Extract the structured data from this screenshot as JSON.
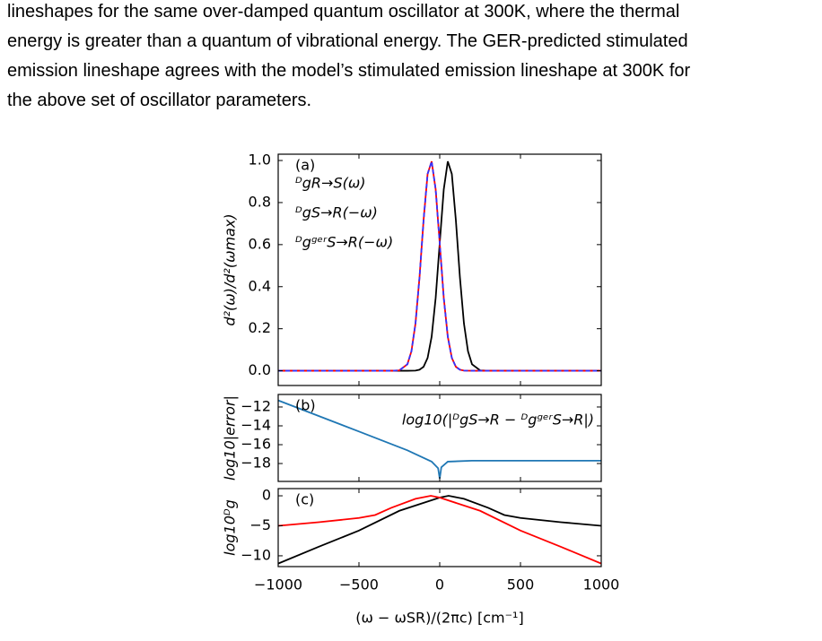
{
  "paragraph": {
    "lines": [
      "lineshapes for the same over-damped quantum oscillator at 300K, where the thermal",
      "energy is greater than a quantum of vibrational energy. The GER-predicted stimulated",
      "emission lineshape agrees with the model’s stimulated emission lineshape at 300K for",
      "the above set of oscillator parameters."
    ]
  },
  "chart_data": [
    {
      "type": "line",
      "panel_label": "(a)",
      "ylabel": "d²(ω)/d²(ωmax)",
      "legend": "upper left",
      "xlim": [
        -1000,
        1000
      ],
      "xticks": [
        -1000,
        -500,
        0,
        500,
        1000
      ],
      "ylim": [
        -0.07,
        1.03
      ],
      "yticks": [
        {
          "value": 0,
          "label": "0.0"
        },
        0.2,
        0.4,
        0.6,
        0.8,
        {
          "value": 1,
          "label": "1.0"
        }
      ],
      "x": [
        -1000,
        -500,
        -300,
        -250,
        -200,
        -175,
        -150,
        -125,
        -100,
        -75,
        -50,
        -25,
        0,
        25,
        50,
        75,
        100,
        125,
        150,
        175,
        200,
        250,
        300,
        500,
        1000
      ],
      "series": [
        {
          "name": "ᴰgR→S(ω)",
          "color": "#000000",
          "dashed": false,
          "values": [
            0,
            0,
            0,
            0,
            0,
            0.0002,
            0.001,
            0.005,
            0.019,
            0.061,
            0.162,
            0.347,
            0.607,
            0.862,
            0.996,
            0.936,
            0.716,
            0.445,
            0.225,
            0.093,
            0.031,
            0.002,
            0,
            0,
            0
          ]
        },
        {
          "name": "ᴰgS→R(−ω)",
          "color": "#ff0000",
          "dashed": false,
          "values": [
            0,
            0,
            0,
            0.002,
            0.031,
            0.093,
            0.225,
            0.445,
            0.716,
            0.936,
            0.996,
            0.862,
            0.607,
            0.347,
            0.162,
            0.061,
            0.019,
            0.005,
            0.001,
            0.0002,
            0,
            0,
            0,
            0,
            0
          ]
        },
        {
          "name": "ᴰgᵍᵉʳS→R(−ω)",
          "color": "#3333ff",
          "dashed": true,
          "values": [
            0,
            0,
            0,
            0.002,
            0.031,
            0.093,
            0.225,
            0.445,
            0.716,
            0.936,
            0.996,
            0.862,
            0.607,
            0.347,
            0.162,
            0.061,
            0.019,
            0.005,
            0.001,
            0.0002,
            0,
            0,
            0,
            0,
            0
          ]
        }
      ]
    },
    {
      "type": "line",
      "panel_label": "(b)",
      "ylabel": "log10|error|",
      "legend": "upper right",
      "xlim": [
        -1000,
        1000
      ],
      "xticks": [
        -1000,
        -500,
        0,
        500,
        1000
      ],
      "ylim": [
        -19.9,
        -10.67
      ],
      "yticks": [
        {
          "value": -12,
          "label": "−12"
        },
        {
          "value": -14,
          "label": "−14"
        },
        {
          "value": -16,
          "label": "−16"
        },
        {
          "value": -18,
          "label": "−18"
        }
      ],
      "x": [
        -1000,
        -500,
        -200,
        -50,
        -10,
        0,
        10,
        50,
        200,
        1000
      ],
      "series": [
        {
          "name": "log10(|ᴰgS→R − ᴰgᵍᵉʳS→R|)",
          "color": "#1f77b4",
          "dashed": false,
          "values": [
            -11.3,
            -14.6,
            -16.6,
            -17.8,
            -18.5,
            -19.6,
            -18.4,
            -17.8,
            -17.7,
            -17.7
          ]
        }
      ]
    },
    {
      "type": "line",
      "panel_label": "(c)",
      "ylabel": "log10ᴰg",
      "xlabel": "(ω − ωSR)/(2πc) [cm⁻¹]",
      "xlim": [
        -1000,
        1000
      ],
      "xticks": [
        {
          "value": -1000,
          "label": "−1000"
        },
        {
          "value": -500,
          "label": "−500"
        },
        0,
        500,
        1000
      ],
      "ylim": [
        -11.8,
        1.2
      ],
      "yticks": [
        0,
        {
          "value": -5,
          "label": "−5"
        },
        {
          "value": -10,
          "label": "−10"
        }
      ],
      "series": [
        {
          "color": "#000000",
          "dashed": false,
          "x": [
            -1000,
            -750,
            -500,
            -250,
            0,
            55,
            150,
            300,
            400,
            500,
            750,
            1000
          ],
          "values": [
            -11.3,
            -8.5,
            -5.8,
            -2.5,
            -0.3,
            0,
            -0.5,
            -2.0,
            -3.2,
            -3.7,
            -4.4,
            -5.0
          ]
        },
        {
          "color": "#ff0000",
          "dashed": false,
          "x": [
            -1000,
            -750,
            -500,
            -400,
            -300,
            -150,
            -55,
            0,
            250,
            500,
            750,
            1000
          ],
          "values": [
            -5.0,
            -4.4,
            -3.7,
            -3.2,
            -2.0,
            -0.5,
            0,
            -0.3,
            -2.5,
            -5.8,
            -8.5,
            -11.3
          ]
        }
      ]
    }
  ]
}
